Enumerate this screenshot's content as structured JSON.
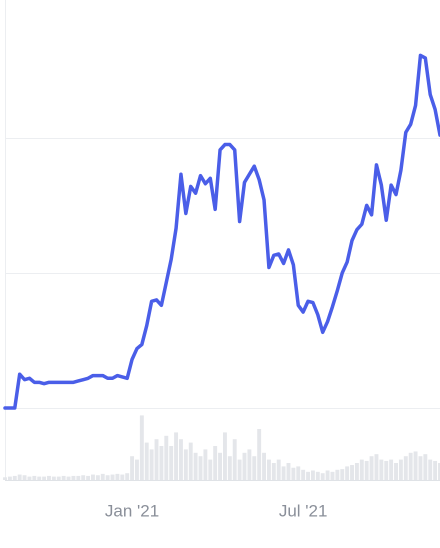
{
  "chart_data": {
    "type": "line",
    "categories": [
      null,
      null,
      null,
      null,
      null,
      null,
      null,
      null,
      null,
      null,
      null,
      null,
      null,
      null,
      null,
      null,
      null,
      null,
      null,
      null,
      null,
      null,
      null,
      null,
      null,
      null,
      "Jan '21",
      null,
      null,
      null,
      null,
      null,
      null,
      null,
      null,
      null,
      null,
      null,
      null,
      null,
      null,
      null,
      null,
      null,
      null,
      null,
      null,
      null,
      null,
      null,
      null,
      null,
      null,
      null,
      null,
      null,
      null,
      null,
      null,
      null,
      null,
      "Jul '21",
      null,
      null,
      null,
      null,
      null,
      null,
      null,
      null,
      null,
      null,
      null,
      null,
      null,
      null,
      null,
      null,
      null,
      null,
      null,
      null,
      null,
      null,
      null,
      null,
      null,
      null,
      null,
      null
    ],
    "series": [
      {
        "color": "#4a5ee8",
        "values": [
          0,
          0,
          0,
          0.25,
          0.21,
          0.22,
          0.19,
          0.19,
          0.18,
          0.19,
          0.19,
          0.19,
          0.19,
          0.19,
          0.19,
          0.2,
          0.21,
          0.22,
          0.24,
          0.24,
          0.24,
          0.22,
          0.22,
          0.24,
          0.23,
          0.22,
          0.36,
          0.44,
          0.47,
          0.61,
          0.79,
          0.8,
          0.76,
          0.93,
          1.1,
          1.33,
          1.73,
          1.44,
          1.64,
          1.59,
          1.72,
          1.66,
          1.7,
          1.47,
          1.91,
          1.95,
          1.95,
          1.91,
          1.38,
          1.67,
          1.73,
          1.79,
          1.69,
          1.54,
          1.04,
          1.13,
          1.14,
          1.07,
          1.17,
          1.06,
          0.76,
          0.71,
          0.79,
          0.78,
          0.69,
          0.56,
          0.64,
          0.75,
          0.87,
          1,
          1.08,
          1.24,
          1.32,
          1.36,
          1.5,
          1.43,
          1.8,
          1.65,
          1.39,
          1.65,
          1.58,
          1.76,
          2.04,
          2.1,
          2.24,
          2.61,
          2.59,
          2.32,
          2.21,
          2.02
        ]
      },
      {
        "color": "#e4e6ea",
        "axis": "y2",
        "values": [
          0.04,
          0.05,
          0.06,
          0.08,
          0.07,
          0.05,
          0.06,
          0.05,
          0.05,
          0.06,
          0.05,
          0.05,
          0.06,
          0.05,
          0.06,
          0.06,
          0.07,
          0.06,
          0.08,
          0.07,
          0.09,
          0.07,
          0.08,
          0.09,
          0.08,
          0.1,
          0.35,
          0.3,
          0.95,
          0.55,
          0.45,
          0.6,
          0.5,
          0.65,
          0.5,
          0.7,
          0.6,
          0.45,
          0.55,
          0.4,
          0.35,
          0.45,
          0.3,
          0.5,
          0.4,
          0.7,
          0.35,
          0.6,
          0.3,
          0.4,
          0.45,
          0.35,
          0.75,
          0.4,
          0.3,
          0.25,
          0.3,
          0.2,
          0.25,
          0.18,
          0.2,
          0.15,
          0.12,
          0.14,
          0.12,
          0.1,
          0.14,
          0.12,
          0.15,
          0.16,
          0.2,
          0.22,
          0.25,
          0.3,
          0.28,
          0.35,
          0.38,
          0.3,
          0.28,
          0.3,
          0.25,
          0.3,
          0.35,
          0.4,
          0.42,
          0.35,
          0.38,
          0.3,
          0.28,
          0.25
        ]
      }
    ],
    "ylim": [
      0,
      3.02
    ],
    "yticks": [
      0,
      1,
      2
    ],
    "y2lim": [
      0,
      1
    ],
    "grid": true
  }
}
